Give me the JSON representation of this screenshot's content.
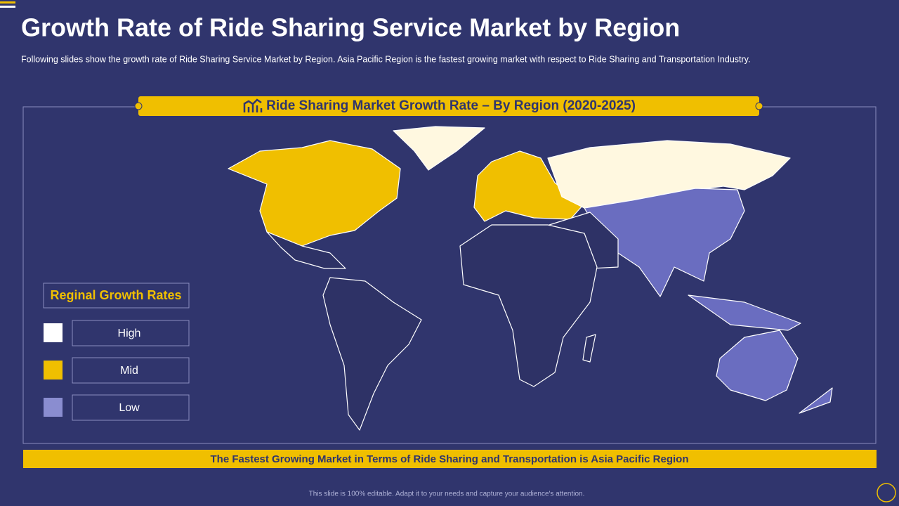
{
  "header": {
    "title": "Growth Rate of Ride Sharing Service Market by Region",
    "subtitle": "Following slides show the growth  rate of Ride Sharing Service  Market by Region. Asia Pacific Region is the fastest growing  market with respect to Ride Sharing and Transportation  Industry."
  },
  "map": {
    "title": "Ride Sharing Market Growth Rate – By Region (2020-2025)"
  },
  "legend": {
    "title": "Reginal Growth Rates",
    "items": [
      {
        "label": "High",
        "color": "#ffffff"
      },
      {
        "label": "Mid",
        "color": "#f0bf00"
      },
      {
        "label": "Low",
        "color": "#8a8dd0"
      }
    ]
  },
  "banner": "The Fastest  Growing Market in Terms of Ride Sharing and Transportation is Asia Pacific Region",
  "footnote": "This slide is 100% editable. Adapt it to your needs and capture your audience's attention."
}
